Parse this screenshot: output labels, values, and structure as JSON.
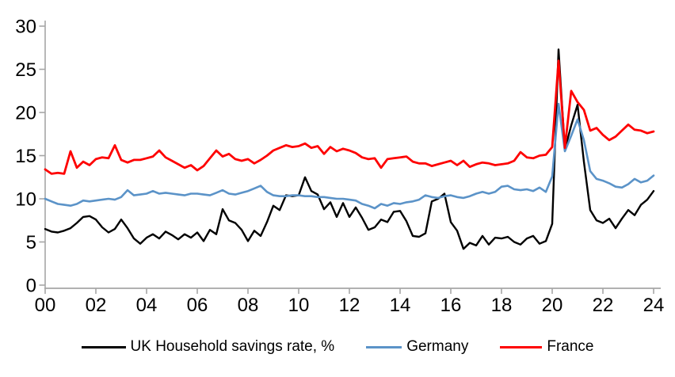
{
  "chart_data": {
    "type": "line",
    "title": "",
    "xlabel": "",
    "ylabel": "",
    "x_start_year": 2000,
    "x_step_years": 0.25,
    "frequency": "quarterly",
    "x_tick_labels": [
      "00",
      "02",
      "04",
      "06",
      "08",
      "10",
      "12",
      "14",
      "16",
      "18",
      "20",
      "22",
      "24"
    ],
    "y_ticks": [
      0,
      5,
      10,
      15,
      20,
      25,
      30
    ],
    "ylim": [
      0,
      30
    ],
    "grid": false,
    "legend_position": "bottom",
    "axis_color": "#A6A6A6",
    "label_color": "#000000",
    "series": [
      {
        "name": "UK Household savings rate, %",
        "color": "#000000",
        "width": 2.4,
        "values": [
          6.5,
          6.2,
          6.1,
          6.3,
          6.6,
          7.2,
          7.9,
          8.0,
          7.6,
          6.7,
          6.1,
          6.5,
          7.6,
          6.6,
          5.4,
          4.8,
          5.5,
          5.9,
          5.4,
          6.2,
          5.8,
          5.3,
          5.9,
          5.5,
          6.1,
          5.1,
          6.4,
          5.9,
          8.8,
          7.5,
          7.2,
          6.4,
          5.1,
          6.3,
          5.7,
          7.3,
          9.2,
          8.7,
          10.4,
          10.3,
          10.4,
          12.5,
          10.9,
          10.5,
          8.8,
          9.6,
          7.9,
          9.5,
          7.9,
          9.0,
          7.8,
          6.4,
          6.7,
          7.6,
          7.3,
          8.5,
          8.6,
          7.4,
          5.7,
          5.6,
          6.0,
          9.7,
          10.0,
          10.6,
          7.3,
          6.3,
          4.2,
          4.9,
          4.6,
          5.7,
          4.7,
          5.5,
          5.4,
          5.6,
          5.0,
          4.7,
          5.4,
          5.7,
          4.8,
          5.1,
          7.1,
          27.3,
          15.7,
          18.5,
          20.9,
          14.3,
          8.7,
          7.5,
          7.2,
          7.7,
          6.6,
          7.7,
          8.7,
          8.1,
          9.3,
          9.9,
          10.9
        ]
      },
      {
        "name": "Germany",
        "color": "#5B93C8",
        "width": 2.6,
        "values": [
          10.0,
          9.7,
          9.4,
          9.3,
          9.2,
          9.4,
          9.8,
          9.7,
          9.8,
          9.9,
          10.0,
          9.9,
          10.2,
          11.0,
          10.4,
          10.5,
          10.6,
          10.9,
          10.6,
          10.7,
          10.6,
          10.5,
          10.4,
          10.6,
          10.6,
          10.5,
          10.4,
          10.7,
          11.0,
          10.6,
          10.5,
          10.7,
          10.9,
          11.2,
          11.5,
          10.8,
          10.4,
          10.3,
          10.3,
          10.4,
          10.4,
          10.3,
          10.3,
          10.2,
          10.2,
          10.1,
          10.0,
          10.0,
          9.9,
          9.8,
          9.4,
          9.2,
          8.9,
          9.4,
          9.2,
          9.5,
          9.4,
          9.6,
          9.7,
          9.9,
          10.4,
          10.2,
          10.1,
          10.3,
          10.4,
          10.2,
          10.1,
          10.3,
          10.6,
          10.8,
          10.6,
          10.8,
          11.4,
          11.5,
          11.1,
          11.0,
          11.1,
          10.9,
          11.3,
          10.8,
          12.6,
          21.0,
          15.5,
          17.3,
          19.2,
          16.8,
          13.2,
          12.3,
          12.1,
          11.8,
          11.4,
          11.3,
          11.7,
          12.3,
          11.9,
          12.1,
          12.7
        ]
      },
      {
        "name": "France",
        "color": "#FE0000",
        "width": 2.8,
        "values": [
          13.4,
          12.9,
          13.0,
          12.9,
          15.5,
          13.6,
          14.3,
          13.9,
          14.6,
          14.8,
          14.7,
          16.2,
          14.5,
          14.2,
          14.5,
          14.5,
          14.7,
          14.9,
          15.6,
          14.8,
          14.4,
          14.0,
          13.6,
          13.9,
          13.3,
          13.8,
          14.7,
          15.6,
          14.9,
          15.2,
          14.6,
          14.4,
          14.6,
          14.1,
          14.5,
          15.0,
          15.6,
          15.9,
          16.2,
          16.0,
          16.1,
          16.4,
          15.9,
          16.1,
          15.2,
          16.0,
          15.5,
          15.8,
          15.6,
          15.3,
          14.8,
          14.6,
          14.7,
          13.6,
          14.6,
          14.7,
          14.8,
          14.9,
          14.3,
          14.1,
          14.1,
          13.8,
          14.0,
          14.2,
          14.4,
          13.9,
          14.4,
          13.7,
          14.0,
          14.2,
          14.1,
          13.9,
          14.0,
          14.1,
          14.4,
          15.4,
          14.8,
          14.7,
          15.0,
          15.1,
          16.0,
          26.0,
          15.9,
          22.5,
          21.2,
          20.3,
          17.9,
          18.2,
          17.4,
          16.8,
          17.2,
          17.9,
          18.6,
          18.0,
          17.9,
          17.6,
          17.8
        ]
      }
    ]
  }
}
